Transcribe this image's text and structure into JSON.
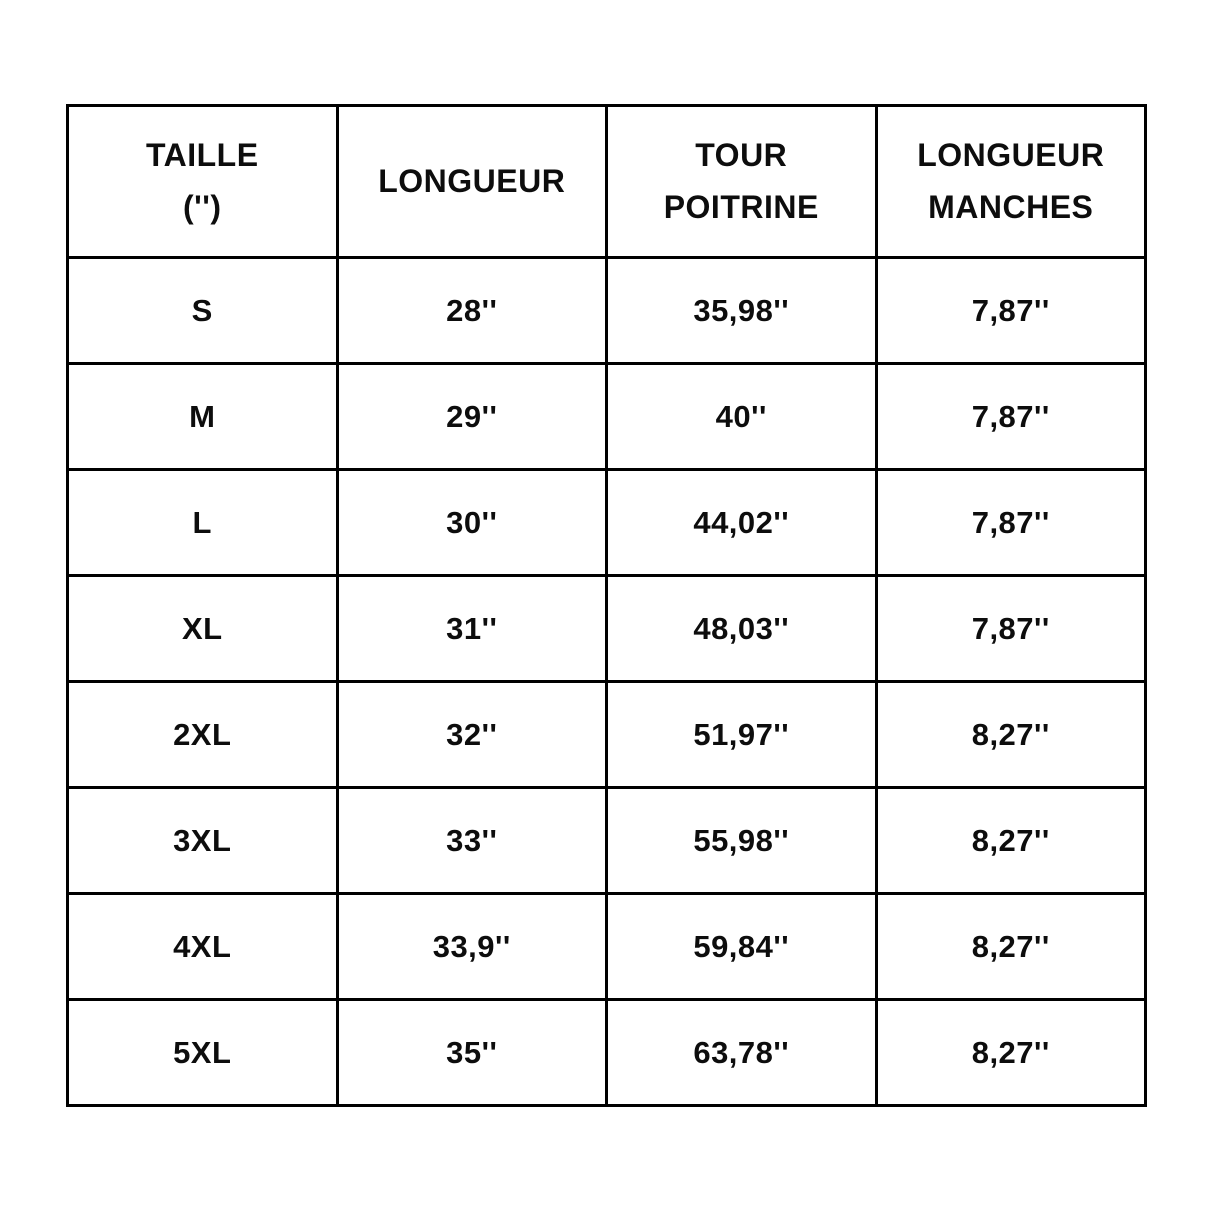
{
  "colors": {
    "background": "#ffffff",
    "border": "#000000",
    "text": "#0d0d0d"
  },
  "table": {
    "display_headers": [
      "TAILLE\n('')",
      "LONGUEUR",
      "TOUR\nPOITRINE",
      "LONGUEUR\nMANCHES"
    ]
  },
  "chart_data": {
    "type": "table",
    "title": "",
    "columns": [
      "TAILLE ('')",
      "LONGUEUR",
      "TOUR POITRINE",
      "LONGUEUR MANCHES"
    ],
    "rows": [
      [
        "S",
        "28''",
        "35,98''",
        "7,87''"
      ],
      [
        "M",
        "29''",
        "40''",
        "7,87''"
      ],
      [
        "L",
        "30''",
        "44,02''",
        "7,87''"
      ],
      [
        "XL",
        "31''",
        "48,03''",
        "7,87''"
      ],
      [
        "2XL",
        "32''",
        "51,97''",
        "8,27''"
      ],
      [
        "3XL",
        "33''",
        "55,98''",
        "8,27''"
      ],
      [
        "4XL",
        "33,9''",
        "59,84''",
        "8,27''"
      ],
      [
        "5XL",
        "35''",
        "63,78''",
        "8,27''"
      ]
    ]
  }
}
